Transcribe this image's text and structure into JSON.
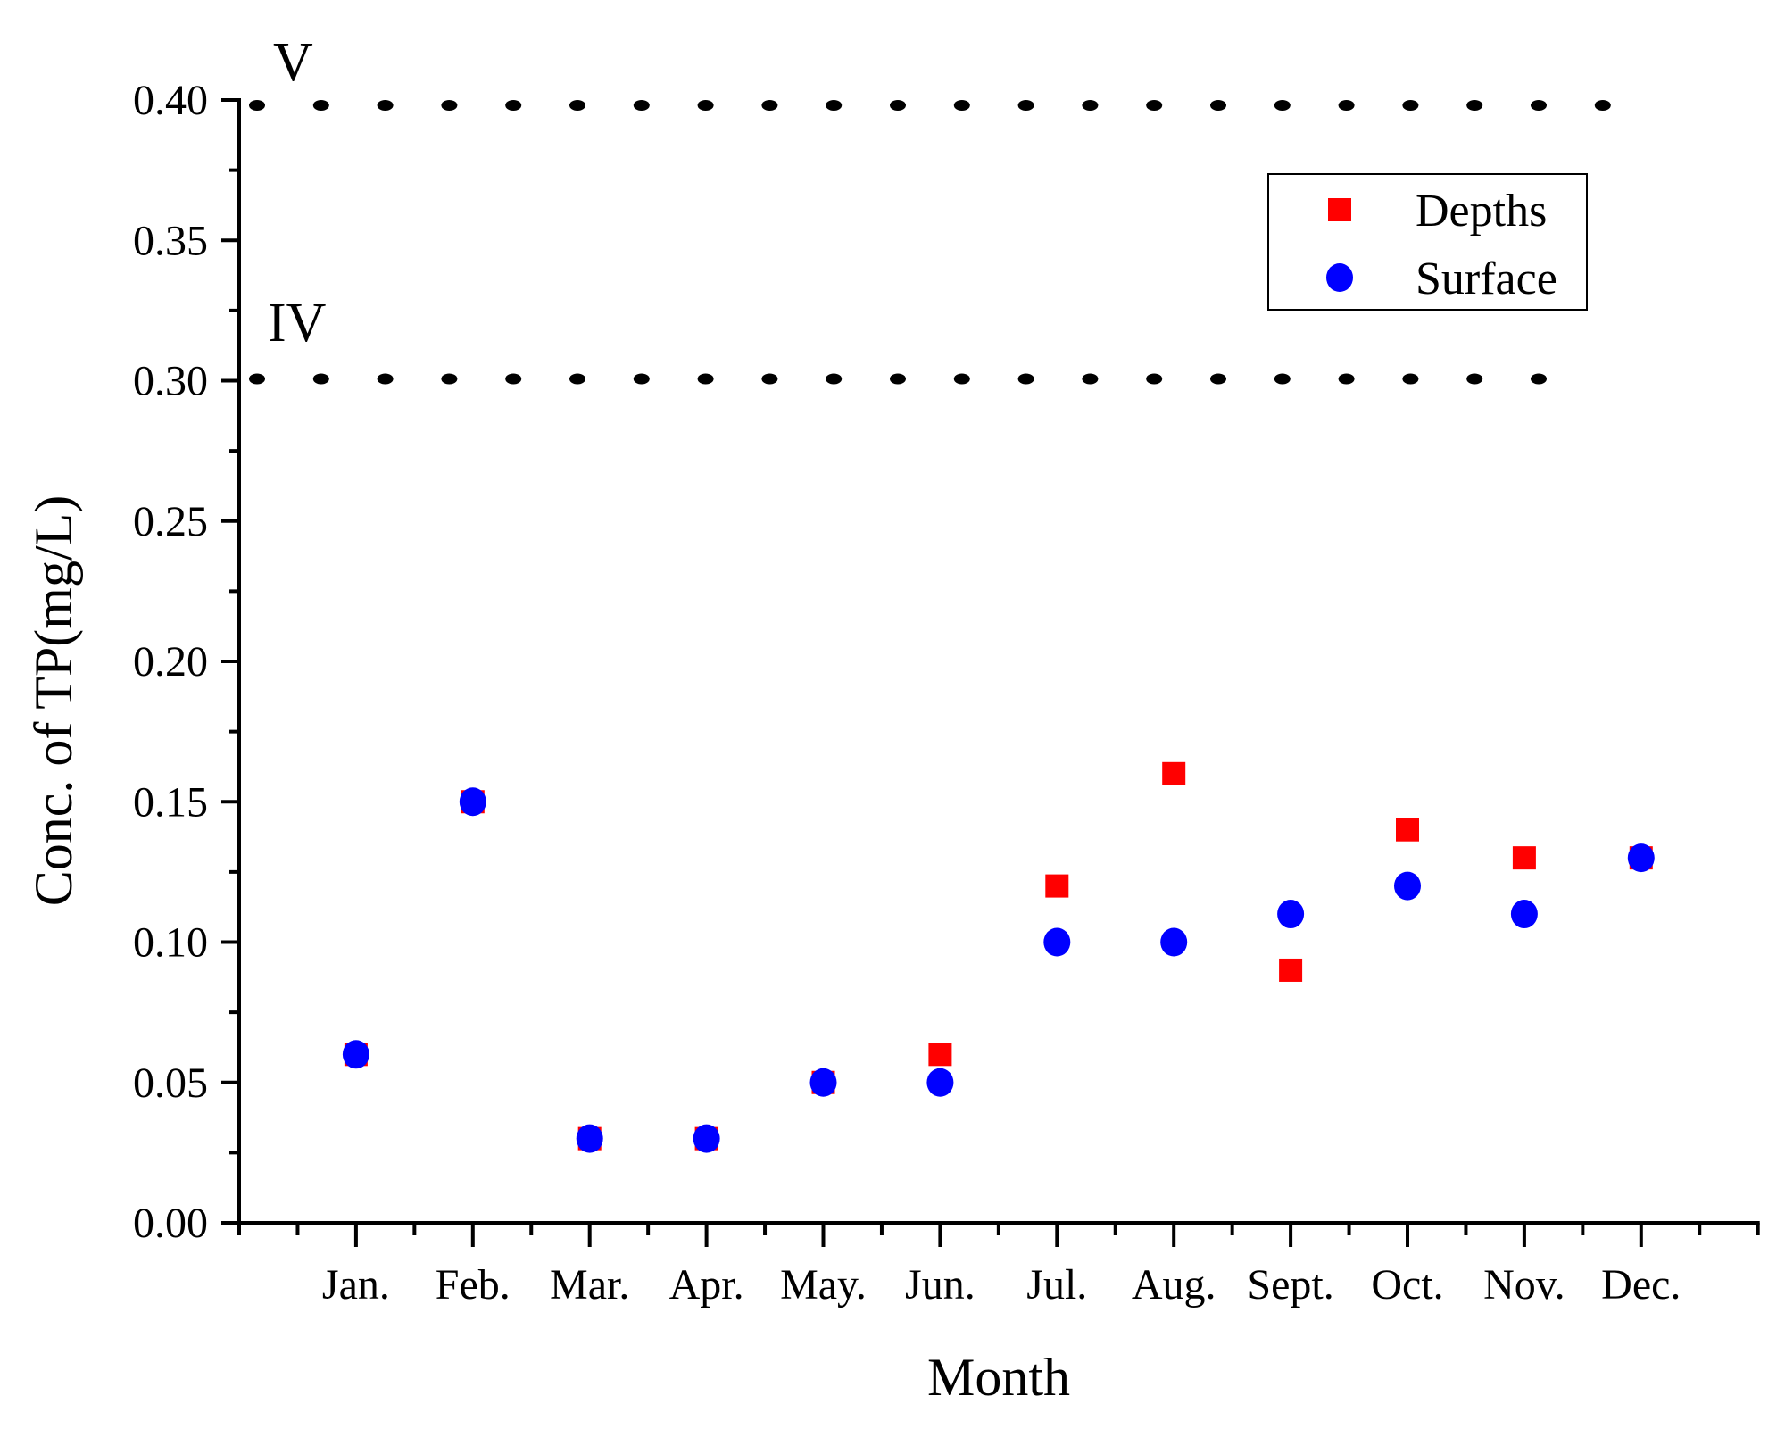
{
  "chart_data": {
    "type": "scatter",
    "xlabel": "Month",
    "ylabel": "Conc. of TP(mg/L)",
    "categories": [
      "Jan.",
      "Feb.",
      "Mar.",
      "Apr.",
      "May.",
      "Jun.",
      "Jul.",
      "Aug.",
      "Sept.",
      "Oct.",
      "Nov.",
      "Dec."
    ],
    "ylim": [
      0,
      0.4
    ],
    "yticks": [
      "0.00",
      "0.05",
      "0.10",
      "0.15",
      "0.20",
      "0.25",
      "0.30",
      "0.35",
      "0.40"
    ],
    "grid": false,
    "legend_position": "top-right",
    "series": [
      {
        "name": "Depths",
        "marker": "square",
        "color": "#ff0000",
        "values": [
          0.06,
          0.15,
          0.03,
          0.03,
          0.05,
          0.06,
          0.12,
          0.16,
          0.09,
          0.14,
          0.13,
          0.13
        ]
      },
      {
        "name": "Surface",
        "marker": "circle",
        "color": "#0000ff",
        "values": [
          0.06,
          0.15,
          0.03,
          0.03,
          0.05,
          0.05,
          0.1,
          0.1,
          0.11,
          0.12,
          0.11,
          0.13
        ]
      }
    ],
    "reference_lines": [
      {
        "value": 0.4,
        "label": "V",
        "style": "dotted"
      },
      {
        "value": 0.3,
        "label": "IV",
        "style": "dotted"
      }
    ]
  }
}
